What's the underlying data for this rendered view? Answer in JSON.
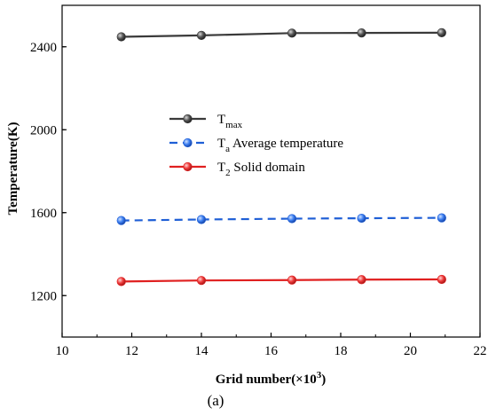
{
  "chart_data": {
    "type": "line",
    "xlabel": "Grid number(×10",
    "xlabel_sup": "3",
    "xlabel_end": ")",
    "ylabel": "Temperature(K)",
    "xlim": [
      10,
      22
    ],
    "ylim": [
      1000,
      2600
    ],
    "xticks": [
      10,
      12,
      14,
      16,
      18,
      20,
      22
    ],
    "yticks": [
      1200,
      1600,
      2000,
      2400
    ],
    "grid": false,
    "legend_position": "center",
    "x": [
      11.7,
      14.0,
      16.6,
      18.6,
      20.9
    ],
    "series": [
      {
        "name_main": "T",
        "name_sub": "max",
        "name_rest": "",
        "color": "#3a3a3a",
        "dash": "solid",
        "values": [
          2448,
          2455,
          2466,
          2467,
          2468
        ]
      },
      {
        "name_main": "T",
        "name_sub": "a",
        "name_rest": " Average temperature",
        "color": "#1f5fd6",
        "dash": "dashed",
        "values": [
          1562,
          1567,
          1571,
          1573,
          1575
        ]
      },
      {
        "name_main": "T",
        "name_sub": "2",
        "name_rest": " Solid domain",
        "color": "#e02020",
        "dash": "solid",
        "values": [
          1268,
          1273,
          1275,
          1277,
          1278
        ]
      }
    ]
  },
  "panel_label": "(a)"
}
